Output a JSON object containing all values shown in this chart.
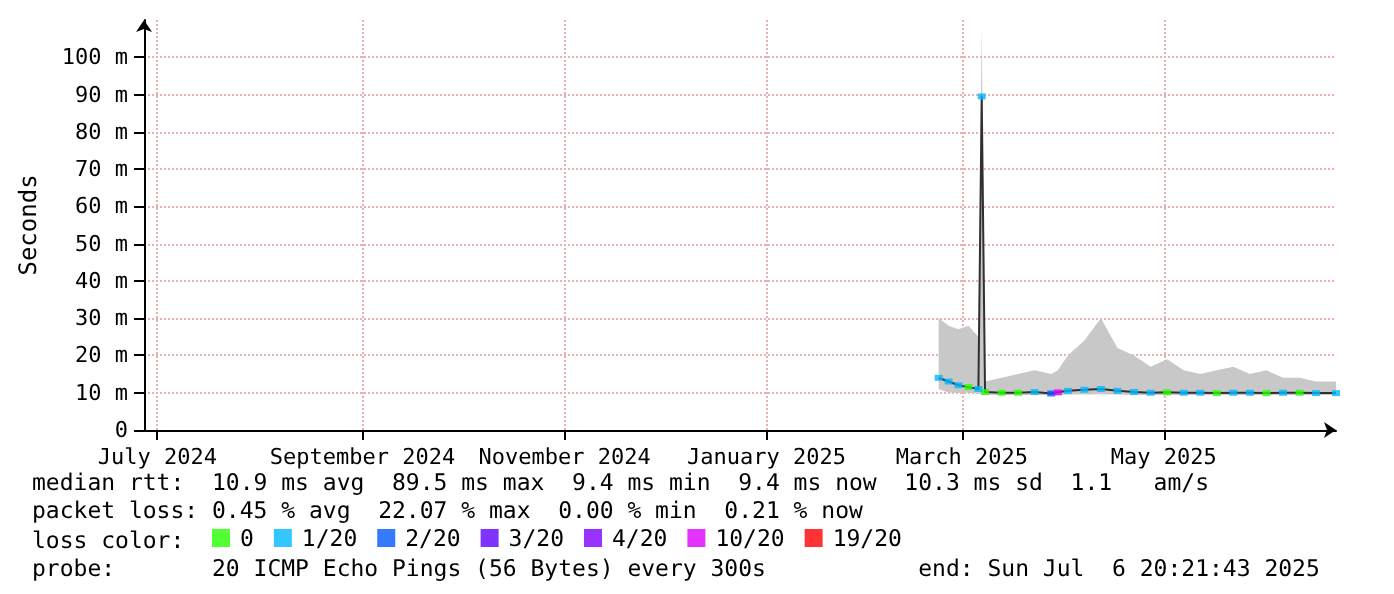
{
  "chart_data": {
    "type": "line",
    "ylabel": "Seconds",
    "xlim": [
      "2024-07-11",
      "2025-07-06"
    ],
    "xticks": [
      {
        "value": "2024-07-15",
        "label": "July 2024"
      },
      {
        "value": "2024-09-15",
        "label": "September 2024"
      },
      {
        "value": "2024-11-15",
        "label": "November 2024"
      },
      {
        "value": "2025-01-15",
        "label": "January 2025"
      },
      {
        "value": "2025-03-15",
        "label": "March 2025"
      },
      {
        "value": "2025-05-15",
        "label": "May 2025"
      }
    ],
    "ylim": [
      0,
      110
    ],
    "yticks": [
      0,
      {
        "value": 10,
        "label": "10 m"
      },
      {
        "value": 20,
        "label": "20 m"
      },
      {
        "value": 30,
        "label": "30 m"
      },
      {
        "value": 40,
        "label": "40 m"
      },
      {
        "value": 50,
        "label": "50 m"
      },
      {
        "value": 60,
        "label": "60 m"
      },
      {
        "value": 70,
        "label": "70 m"
      },
      {
        "value": 80,
        "label": "80 m"
      },
      {
        "value": 90,
        "label": "90 m"
      },
      {
        "value": 100,
        "label": "100 m"
      }
    ],
    "grid": true,
    "legend": "bottom",
    "legend_title": "loss color:",
    "marker": "square",
    "series": [
      {
        "color": "#303030",
        "marker": "none",
        "x": [
          "2025-03-08",
          "2025-03-11",
          "2025-03-14",
          "2025-03-17",
          "2025-03-20",
          "2025-03-21",
          "2025-03-22",
          "2025-03-27",
          "2025-04-01",
          "2025-04-06",
          "2025-04-11",
          "2025-04-13",
          "2025-04-16",
          "2025-04-21",
          "2025-04-26",
          "2025-05-01",
          "2025-05-06",
          "2025-05-11",
          "2025-05-16",
          "2025-05-21",
          "2025-05-26",
          "2025-05-31",
          "2025-06-05",
          "2025-06-10",
          "2025-06-15",
          "2025-06-20",
          "2025-06-25",
          "2025-06-30",
          "2025-07-06"
        ],
        "values": [
          14,
          13,
          12,
          11.5,
          11,
          89.5,
          10.2,
          10,
          10,
          10.2,
          9.8,
          10.1,
          10.5,
          10.8,
          11,
          10.5,
          10.2,
          10,
          10.1,
          10,
          10,
          9.9,
          10,
          10,
          9.9,
          10,
          10,
          9.9,
          9.9
        ],
        "lower": [
          11,
          10,
          10,
          10,
          9.8,
          9.5,
          9.4,
          9.4,
          9.4,
          9.4,
          9.4,
          9.4,
          9.5,
          9.5,
          9.6,
          9.5,
          9.4,
          9.4,
          9.4,
          9.4,
          9.4,
          9.4,
          9.4,
          9.4,
          9.4,
          9.4,
          9.4,
          9.4,
          9.4
        ],
        "upper": [
          30,
          28,
          27,
          28,
          25,
          108,
          13,
          14,
          15,
          16,
          15,
          16,
          20,
          24,
          30,
          22,
          20,
          17,
          19,
          16,
          15,
          16,
          17,
          15,
          16,
          14,
          14,
          13,
          13
        ]
      },
      {
        "type": "scatter",
        "name": "0",
        "color": "#26ff00",
        "x": [
          "2025-03-17",
          "2025-03-22",
          "2025-03-27",
          "2025-04-01",
          "2025-05-16",
          "2025-05-31",
          "2025-06-15",
          "2025-06-25"
        ],
        "values": [
          11.5,
          10.2,
          10,
          10,
          10.1,
          9.9,
          9.9,
          10
        ]
      },
      {
        "type": "scatter",
        "name": "1/20",
        "color": "#00b8ff",
        "x": [
          "2025-03-08",
          "2025-03-11",
          "2025-03-14",
          "2025-03-20",
          "2025-03-21",
          "2025-04-06",
          "2025-04-16",
          "2025-04-21",
          "2025-04-26",
          "2025-05-01",
          "2025-05-06",
          "2025-05-11",
          "2025-05-21",
          "2025-05-26",
          "2025-06-05",
          "2025-06-10",
          "2025-06-20",
          "2025-06-30",
          "2025-07-06"
        ],
        "values": [
          14,
          13,
          12,
          11,
          89.5,
          10.2,
          10.5,
          10.8,
          11,
          10.5,
          10.2,
          10,
          10,
          10,
          10,
          10,
          10,
          9.9,
          9.9
        ]
      },
      {
        "type": "scatter",
        "name": "2/20",
        "color": "#0059ff",
        "x": [
          "2025-04-11"
        ],
        "values": [
          9.8
        ]
      },
      {
        "type": "scatter",
        "name": "3/20",
        "color": "#5e00ff"
      },
      {
        "type": "scatter",
        "name": "4/20",
        "color": "#7e00ff"
      },
      {
        "type": "scatter",
        "name": "10/20",
        "color": "#dd00ff",
        "x": [
          "2025-04-13"
        ],
        "values": [
          10.1
        ]
      },
      {
        "type": "scatter",
        "name": "19/20",
        "color": "#ff0000"
      }
    ],
    "annotations": [
      "median rtt:  10.9 ms avg  89.5 ms max  9.4 ms min  9.4 ms now  10.3 ms sd  1.1   am/s",
      "packet loss: 0.45 % avg  22.07 % max  0.00 % min  0.21 % now",
      "probe:       20 ICMP Echo Pings (56 Bytes) every 300s           end: Sun Jul  6 20:21:43 2025"
    ]
  }
}
